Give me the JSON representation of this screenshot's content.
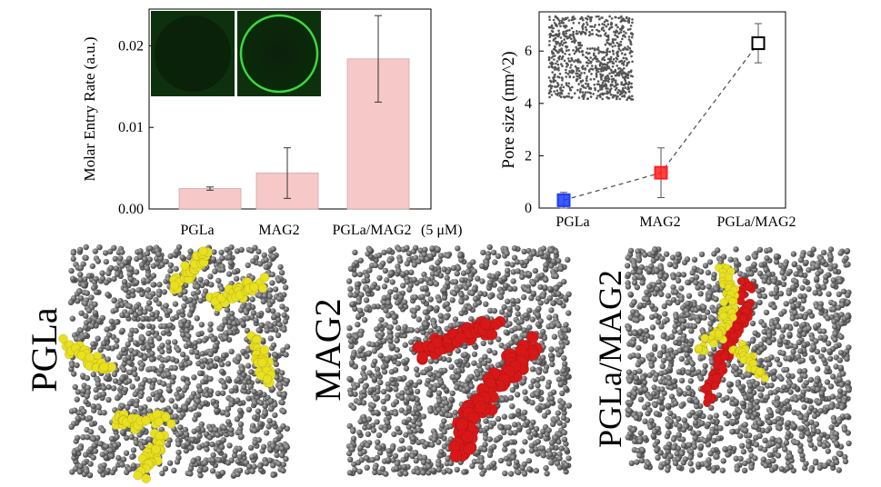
{
  "chart_data": [
    {
      "type": "bar",
      "categories": [
        "PGLa",
        "MAG2",
        "PGLa/MAG2"
      ],
      "values": [
        0.0025,
        0.0044,
        0.0184
      ],
      "errors": [
        0.0002,
        0.0031,
        0.0053
      ],
      "ylabel": "Molar Entry Rate (a.u.)",
      "ylim": [
        0,
        0.0245
      ],
      "yticks": [
        0,
        0.01,
        0.02
      ],
      "ytick_labels": [
        "0.00",
        "0.01",
        "0.02"
      ],
      "annotation": "(5 μM)",
      "colors": {
        "bar": "#f7c8c8",
        "bar_edge": "#c9a9a9",
        "inset_bg": "#0a2a0a",
        "inset_ring": "#3fd63f"
      }
    },
    {
      "type": "scatter",
      "categories": [
        "PGLa",
        "MAG2",
        "PGLa/MAG2"
      ],
      "values": [
        0.3,
        1.35,
        6.3
      ],
      "errors": [
        0.3,
        0.95,
        0.75
      ],
      "ylabel": "Pore size (nm^2)",
      "ylim": [
        0,
        7.5
      ],
      "yticks": [
        0,
        2,
        4,
        6
      ],
      "ytick_labels": [
        "0",
        "2",
        "4",
        "6"
      ],
      "colors": {
        "PGLa": "#1a3cff",
        "MAG2": "#ff2020",
        "PGLa/MAG2": "#000000",
        "line": "#555555"
      }
    }
  ],
  "panels": {
    "labels": [
      "PGLa",
      "MAG2",
      "PGLa/MAG2"
    ],
    "colors": {
      "lipid": "#6a6a6a",
      "pgla": "#e8e020",
      "mag2": "#d81818"
    }
  }
}
